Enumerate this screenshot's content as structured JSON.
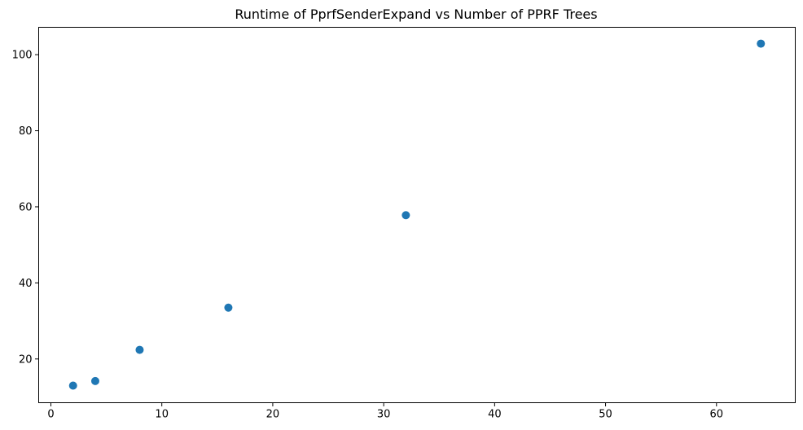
{
  "chart_data": {
    "type": "scatter",
    "title": "Runtime of PprfSenderExpand vs Number of PPRF Trees",
    "xlabel": "",
    "ylabel": "",
    "xlim": [
      -1.1,
      67.1
    ],
    "ylim": [
      8.5,
      107.2
    ],
    "x_ticks": [
      0,
      10,
      20,
      30,
      40,
      50,
      60
    ],
    "y_ticks": [
      20,
      40,
      60,
      80,
      100
    ],
    "grid": false,
    "legend": "none",
    "marker_color": "#1f77b4",
    "series": [
      {
        "x": [
          2,
          4,
          8,
          16,
          32,
          64
        ],
        "y": [
          13.0,
          14.2,
          22.4,
          33.5,
          57.8,
          102.9
        ]
      }
    ]
  }
}
